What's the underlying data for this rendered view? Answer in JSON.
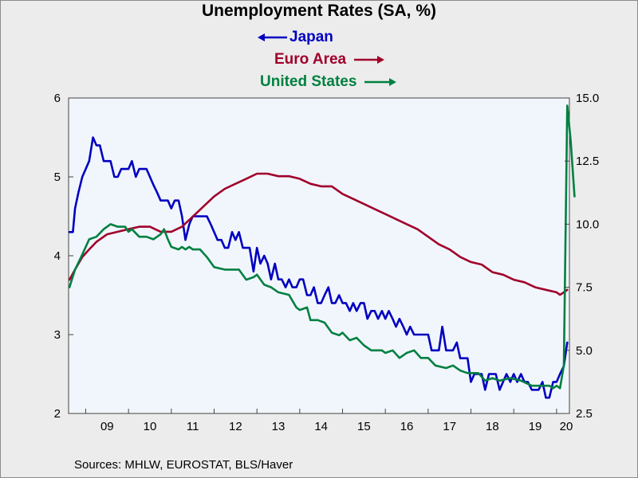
{
  "chart_data": {
    "type": "line",
    "title": "Unemployment Rates (SA, %)",
    "source": "Sources:  MHLW, EUROSTAT, BLS/Haver",
    "x_tick_labels": [
      "09",
      "10",
      "11",
      "12",
      "13",
      "14",
      "15",
      "16",
      "17",
      "18",
      "19",
      "20"
    ],
    "x_range": [
      2008.6,
      2020.3
    ],
    "left_axis": {
      "ticks": [
        "2",
        "3",
        "4",
        "5",
        "6"
      ],
      "ylim": [
        2,
        6
      ]
    },
    "right_axis": {
      "ticks": [
        "2.5",
        "5.0",
        "7.5",
        "10.0",
        "12.5",
        "15.0"
      ],
      "ylim": [
        2.5,
        15.0
      ]
    },
    "grid": false,
    "legend_placement": "top-center",
    "series": [
      {
        "name": "Japan",
        "axis": "left",
        "color": "#0000c0",
        "arrow": "left",
        "points": [
          [
            2008.62,
            4.3
          ],
          [
            2008.7,
            4.3
          ],
          [
            2008.75,
            4.6
          ],
          [
            2008.83,
            4.8
          ],
          [
            2008.92,
            5.0
          ],
          [
            2009.08,
            5.2
          ],
          [
            2009.17,
            5.5
          ],
          [
            2009.25,
            5.4
          ],
          [
            2009.33,
            5.4
          ],
          [
            2009.42,
            5.2
          ],
          [
            2009.58,
            5.2
          ],
          [
            2009.67,
            5.0
          ],
          [
            2009.75,
            5.0
          ],
          [
            2009.83,
            5.1
          ],
          [
            2009.92,
            5.1
          ],
          [
            2010.0,
            5.1
          ],
          [
            2010.08,
            5.2
          ],
          [
            2010.17,
            5.0
          ],
          [
            2010.25,
            5.1
          ],
          [
            2010.42,
            5.1
          ],
          [
            2010.58,
            4.9
          ],
          [
            2010.67,
            4.8
          ],
          [
            2010.75,
            4.7
          ],
          [
            2010.92,
            4.7
          ],
          [
            2011.0,
            4.6
          ],
          [
            2011.08,
            4.7
          ],
          [
            2011.17,
            4.7
          ],
          [
            2011.25,
            4.5
          ],
          [
            2011.33,
            4.2
          ],
          [
            2011.42,
            4.4
          ],
          [
            2011.5,
            4.5
          ],
          [
            2011.83,
            4.5
          ],
          [
            2011.92,
            4.4
          ],
          [
            2012.0,
            4.3
          ],
          [
            2012.08,
            4.2
          ],
          [
            2012.17,
            4.2
          ],
          [
            2012.25,
            4.1
          ],
          [
            2012.33,
            4.1
          ],
          [
            2012.42,
            4.3
          ],
          [
            2012.5,
            4.2
          ],
          [
            2012.58,
            4.3
          ],
          [
            2012.67,
            4.1
          ],
          [
            2012.83,
            4.1
          ],
          [
            2012.92,
            3.8
          ],
          [
            2013.0,
            4.1
          ],
          [
            2013.08,
            3.9
          ],
          [
            2013.17,
            4.0
          ],
          [
            2013.25,
            3.9
          ],
          [
            2013.33,
            3.7
          ],
          [
            2013.42,
            3.9
          ],
          [
            2013.5,
            3.7
          ],
          [
            2013.58,
            3.7
          ],
          [
            2013.67,
            3.6
          ],
          [
            2013.75,
            3.7
          ],
          [
            2013.83,
            3.6
          ],
          [
            2013.92,
            3.6
          ],
          [
            2014.0,
            3.7
          ],
          [
            2014.08,
            3.7
          ],
          [
            2014.17,
            3.5
          ],
          [
            2014.25,
            3.5
          ],
          [
            2014.33,
            3.6
          ],
          [
            2014.42,
            3.4
          ],
          [
            2014.5,
            3.4
          ],
          [
            2014.58,
            3.5
          ],
          [
            2014.67,
            3.6
          ],
          [
            2014.75,
            3.4
          ],
          [
            2014.83,
            3.4
          ],
          [
            2014.92,
            3.5
          ],
          [
            2015.0,
            3.4
          ],
          [
            2015.08,
            3.4
          ],
          [
            2015.17,
            3.3
          ],
          [
            2015.25,
            3.4
          ],
          [
            2015.33,
            3.3
          ],
          [
            2015.42,
            3.4
          ],
          [
            2015.5,
            3.4
          ],
          [
            2015.58,
            3.2
          ],
          [
            2015.67,
            3.3
          ],
          [
            2015.75,
            3.3
          ],
          [
            2015.83,
            3.2
          ],
          [
            2015.92,
            3.3
          ],
          [
            2016.0,
            3.2
          ],
          [
            2016.08,
            3.3
          ],
          [
            2016.17,
            3.2
          ],
          [
            2016.25,
            3.1
          ],
          [
            2016.33,
            3.2
          ],
          [
            2016.42,
            3.1
          ],
          [
            2016.5,
            3.0
          ],
          [
            2016.58,
            3.1
          ],
          [
            2016.67,
            3.0
          ],
          [
            2017.0,
            3.0
          ],
          [
            2017.08,
            2.8
          ],
          [
            2017.25,
            2.8
          ],
          [
            2017.33,
            3.1
          ],
          [
            2017.42,
            2.8
          ],
          [
            2017.58,
            2.8
          ],
          [
            2017.67,
            2.9
          ],
          [
            2017.75,
            2.7
          ],
          [
            2017.92,
            2.7
          ],
          [
            2018.0,
            2.4
          ],
          [
            2018.08,
            2.5
          ],
          [
            2018.17,
            2.5
          ],
          [
            2018.25,
            2.5
          ],
          [
            2018.33,
            2.3
          ],
          [
            2018.42,
            2.5
          ],
          [
            2018.5,
            2.5
          ],
          [
            2018.58,
            2.5
          ],
          [
            2018.67,
            2.3
          ],
          [
            2018.75,
            2.4
          ],
          [
            2018.83,
            2.5
          ],
          [
            2018.92,
            2.4
          ],
          [
            2019.0,
            2.5
          ],
          [
            2019.08,
            2.4
          ],
          [
            2019.17,
            2.5
          ],
          [
            2019.25,
            2.4
          ],
          [
            2019.33,
            2.4
          ],
          [
            2019.42,
            2.3
          ],
          [
            2019.5,
            2.3
          ],
          [
            2019.58,
            2.3
          ],
          [
            2019.67,
            2.4
          ],
          [
            2019.75,
            2.2
          ],
          [
            2019.83,
            2.2
          ],
          [
            2019.92,
            2.4
          ],
          [
            2020.0,
            2.4
          ],
          [
            2020.08,
            2.5
          ],
          [
            2020.17,
            2.6
          ],
          [
            2020.25,
            2.9
          ]
        ]
      },
      {
        "name": "Euro Area",
        "axis": "right",
        "color": "#a0002a",
        "arrow": "right",
        "points": [
          [
            2008.62,
            7.8
          ],
          [
            2008.75,
            8.2
          ],
          [
            2008.92,
            8.7
          ],
          [
            2009.08,
            9.0
          ],
          [
            2009.25,
            9.3
          ],
          [
            2009.5,
            9.6
          ],
          [
            2009.75,
            9.7
          ],
          [
            2010.0,
            9.8
          ],
          [
            2010.25,
            9.9
          ],
          [
            2010.5,
            9.9
          ],
          [
            2010.75,
            9.7
          ],
          [
            2011.0,
            9.7
          ],
          [
            2011.25,
            9.9
          ],
          [
            2011.5,
            10.3
          ],
          [
            2011.75,
            10.7
          ],
          [
            2012.0,
            11.1
          ],
          [
            2012.25,
            11.4
          ],
          [
            2012.5,
            11.6
          ],
          [
            2012.75,
            11.8
          ],
          [
            2013.0,
            12.0
          ],
          [
            2013.25,
            12.0
          ],
          [
            2013.5,
            11.9
          ],
          [
            2013.75,
            11.9
          ],
          [
            2014.0,
            11.8
          ],
          [
            2014.25,
            11.6
          ],
          [
            2014.5,
            11.5
          ],
          [
            2014.75,
            11.5
          ],
          [
            2015.0,
            11.2
          ],
          [
            2015.25,
            11.0
          ],
          [
            2015.5,
            10.8
          ],
          [
            2015.75,
            10.6
          ],
          [
            2016.0,
            10.4
          ],
          [
            2016.25,
            10.2
          ],
          [
            2016.5,
            10.0
          ],
          [
            2016.75,
            9.8
          ],
          [
            2017.0,
            9.5
          ],
          [
            2017.25,
            9.2
          ],
          [
            2017.5,
            9.0
          ],
          [
            2017.75,
            8.7
          ],
          [
            2018.0,
            8.5
          ],
          [
            2018.25,
            8.4
          ],
          [
            2018.5,
            8.1
          ],
          [
            2018.75,
            8.0
          ],
          [
            2019.0,
            7.8
          ],
          [
            2019.25,
            7.7
          ],
          [
            2019.5,
            7.5
          ],
          [
            2019.75,
            7.4
          ],
          [
            2020.0,
            7.3
          ],
          [
            2020.08,
            7.2
          ],
          [
            2020.17,
            7.3
          ],
          [
            2020.25,
            7.4
          ]
        ]
      },
      {
        "name": "United States",
        "axis": "right",
        "color": "#008040",
        "arrow": "right",
        "points": [
          [
            2008.62,
            7.5
          ],
          [
            2008.75,
            8.2
          ],
          [
            2008.92,
            8.8
          ],
          [
            2009.08,
            9.4
          ],
          [
            2009.25,
            9.5
          ],
          [
            2009.42,
            9.8
          ],
          [
            2009.58,
            10.0
          ],
          [
            2009.75,
            9.9
          ],
          [
            2009.92,
            9.9
          ],
          [
            2010.0,
            9.7
          ],
          [
            2010.08,
            9.8
          ],
          [
            2010.25,
            9.5
          ],
          [
            2010.42,
            9.5
          ],
          [
            2010.58,
            9.4
          ],
          [
            2010.75,
            9.6
          ],
          [
            2010.83,
            9.8
          ],
          [
            2010.92,
            9.4
          ],
          [
            2011.0,
            9.1
          ],
          [
            2011.17,
            9.0
          ],
          [
            2011.25,
            9.1
          ],
          [
            2011.33,
            9.0
          ],
          [
            2011.42,
            9.1
          ],
          [
            2011.5,
            9.0
          ],
          [
            2011.67,
            9.0
          ],
          [
            2011.83,
            8.7
          ],
          [
            2012.0,
            8.3
          ],
          [
            2012.25,
            8.2
          ],
          [
            2012.58,
            8.2
          ],
          [
            2012.75,
            7.8
          ],
          [
            2012.92,
            7.9
          ],
          [
            2013.0,
            8.0
          ],
          [
            2013.17,
            7.6
          ],
          [
            2013.33,
            7.5
          ],
          [
            2013.5,
            7.3
          ],
          [
            2013.75,
            7.2
          ],
          [
            2013.92,
            6.7
          ],
          [
            2014.0,
            6.6
          ],
          [
            2014.17,
            6.7
          ],
          [
            2014.25,
            6.2
          ],
          [
            2014.42,
            6.2
          ],
          [
            2014.58,
            6.1
          ],
          [
            2014.75,
            5.7
          ],
          [
            2014.92,
            5.6
          ],
          [
            2015.0,
            5.7
          ],
          [
            2015.17,
            5.4
          ],
          [
            2015.33,
            5.5
          ],
          [
            2015.5,
            5.2
          ],
          [
            2015.67,
            5.0
          ],
          [
            2015.92,
            5.0
          ],
          [
            2016.0,
            4.9
          ],
          [
            2016.17,
            5.0
          ],
          [
            2016.33,
            4.7
          ],
          [
            2016.5,
            4.9
          ],
          [
            2016.67,
            5.0
          ],
          [
            2016.83,
            4.7
          ],
          [
            2017.0,
            4.7
          ],
          [
            2017.17,
            4.4
          ],
          [
            2017.42,
            4.3
          ],
          [
            2017.58,
            4.4
          ],
          [
            2017.75,
            4.2
          ],
          [
            2017.92,
            4.1
          ],
          [
            2018.17,
            4.1
          ],
          [
            2018.33,
            3.8
          ],
          [
            2018.5,
            3.9
          ],
          [
            2018.67,
            3.8
          ],
          [
            2018.92,
            3.9
          ],
          [
            2019.17,
            3.8
          ],
          [
            2019.42,
            3.6
          ],
          [
            2019.67,
            3.6
          ],
          [
            2019.83,
            3.6
          ],
          [
            2019.92,
            3.5
          ],
          [
            2020.0,
            3.6
          ],
          [
            2020.08,
            3.5
          ],
          [
            2020.17,
            4.4
          ],
          [
            2020.25,
            14.7
          ],
          [
            2020.33,
            13.3
          ],
          [
            2020.42,
            11.1
          ]
        ]
      }
    ]
  }
}
